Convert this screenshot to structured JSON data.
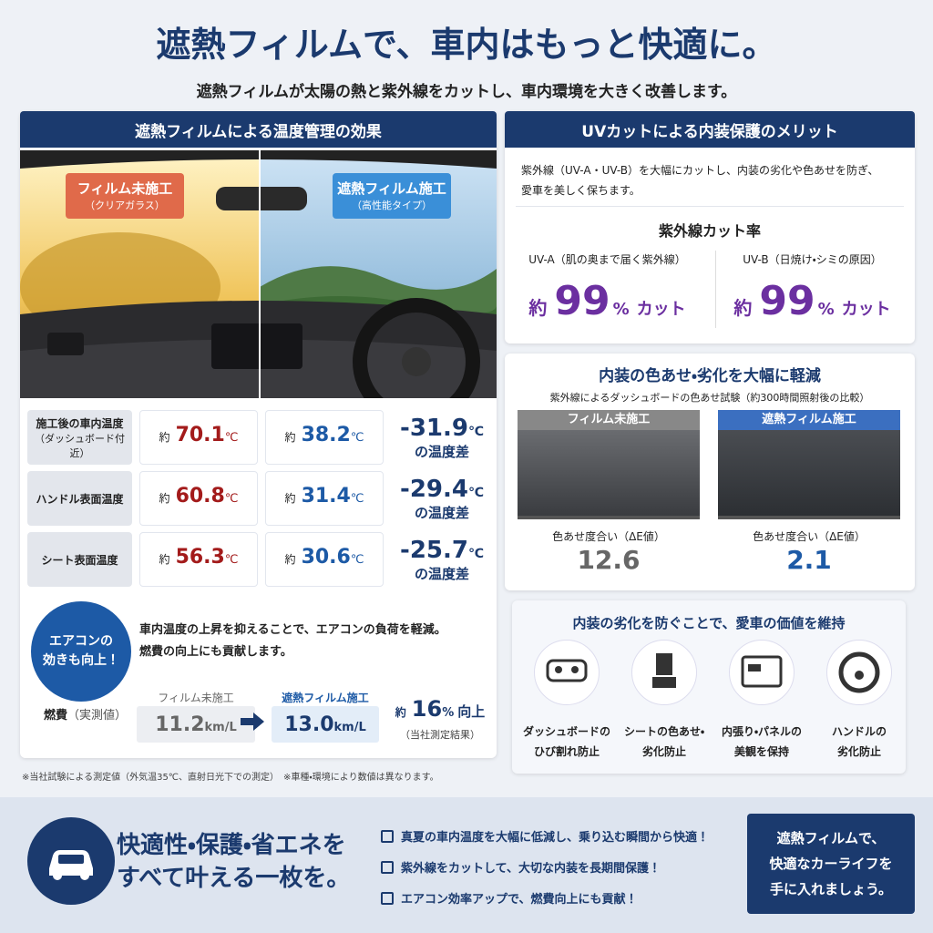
{
  "header": {
    "title": "遮熱フィルムで、車内はもっと快適に。",
    "subtitle": "遮熱フィルムが太陽の熱と紫外線をカットし、車内環境を大きく改善します。"
  },
  "left_panel": {
    "title": "遮熱フィルムによる温度管理の効果",
    "badge_before": {
      "label": "フィルム未施工",
      "sub": "（クリアガラス）"
    },
    "badge_after": {
      "label": "遮熱フィルム施工",
      "sub": "（高性能タイプ）"
    },
    "rows": [
      {
        "label": [
          "施工後の車内温度",
          "（ダッシュボード付近）"
        ],
        "before": {
          "prefix": "約",
          "value": "70.1",
          "unit": "℃"
        },
        "after": {
          "prefix": "約",
          "value": "38.2",
          "unit": "℃"
        },
        "diff": {
          "value": "-31.9",
          "unit": "℃",
          "note": "の温度差"
        }
      },
      {
        "label": [
          "ハンドル表面温度"
        ],
        "before": {
          "prefix": "約",
          "value": "60.8",
          "unit": "℃"
        },
        "after": {
          "prefix": "約",
          "value": "31.4",
          "unit": "℃"
        },
        "diff": {
          "value": "-29.4",
          "unit": "℃",
          "note": "の温度差"
        }
      },
      {
        "label": [
          "シート表面温度"
        ],
        "before": {
          "prefix": "約",
          "value": "56.3",
          "unit": "℃"
        },
        "after": {
          "prefix": "約",
          "value": "30.6",
          "unit": "℃"
        },
        "diff": {
          "value": "-25.7",
          "unit": "℃",
          "note": "の温度差"
        }
      }
    ],
    "aircon": {
      "badge": [
        "エアコンの",
        "効きも向上！"
      ],
      "text": [
        "車内温度の上昇を抑えることで、エアコンの負荷を軽減。",
        "燃費の向上にも貢献します。"
      ]
    },
    "fuel": {
      "label": "燃費",
      "label_note": "（実測値）",
      "before_label": "フィルム未施工",
      "before_value": "11.2",
      "before_unit": "km/L",
      "after_label": "遮熱フィルム施工",
      "after_value": "13.0",
      "after_unit": "km/L",
      "gain_prefix": "約",
      "gain_value": "16",
      "gain_unit": "%",
      "gain_suffix": "向上",
      "gain_note": "（当社測定結果）"
    },
    "footnote": "※当社試験による測定値（外気温35℃、直射日光下での測定）　※車種・環境により数値は異なります。"
  },
  "uv_panel": {
    "title": "UVカットによる内装保護のメリット",
    "text": [
      "紫外線（UV-A・UV-B）を大幅にカットし、内装の劣化や色あせを防ぎ、",
      "愛車を美しく保ちます。"
    ],
    "rate_title": "紫外線カット率",
    "items": [
      {
        "label": "UV-A（肌の奥まで届く紫外線）",
        "prefix": "約",
        "value": "99",
        "unit": "%",
        "suffix": "カット"
      },
      {
        "label": "UV-B（日焼け・シミの原因）",
        "prefix": "約",
        "value": "99",
        "unit": "%",
        "suffix": "カット"
      }
    ]
  },
  "fade_panel": {
    "title": "内装の色あせ・劣化を大幅に軽減",
    "subtitle": "紫外線によるダッシュボードの色あせ試験（約300時間照射後の比較）",
    "samples": [
      {
        "label": "フィルム未施工",
        "metric": "色あせ度合い（ΔE値）",
        "value": "12.6"
      },
      {
        "label": "遮熱フィルム施工",
        "metric": "色あせ度合い（ΔE値）",
        "value": "2.1"
      }
    ]
  },
  "protect_panel": {
    "title": "内装の劣化を防ぐことで、愛車の価値を維持",
    "items": [
      [
        "ダッシュボードの",
        "ひび割れ防止"
      ],
      [
        "シートの色あせ・",
        "劣化防止"
      ],
      [
        "内張り・パネルの",
        "美観を保持"
      ],
      [
        "ハンドルの",
        "劣化防止"
      ]
    ]
  },
  "footer": {
    "slogan": [
      "快適性・保護・省エネを",
      "すべて叶える一枚を。"
    ],
    "checks": [
      "真夏の車内温度を大幅に低減し、乗り込む瞬間から快適！",
      "紫外線をカットして、大切な内装を長期間保護！",
      "エアコン効率アップで、燃費向上にも貢献！"
    ],
    "cta": [
      "遮熱フィルムで、",
      "快適なカーライフを",
      "手に入れましょう。"
    ]
  }
}
